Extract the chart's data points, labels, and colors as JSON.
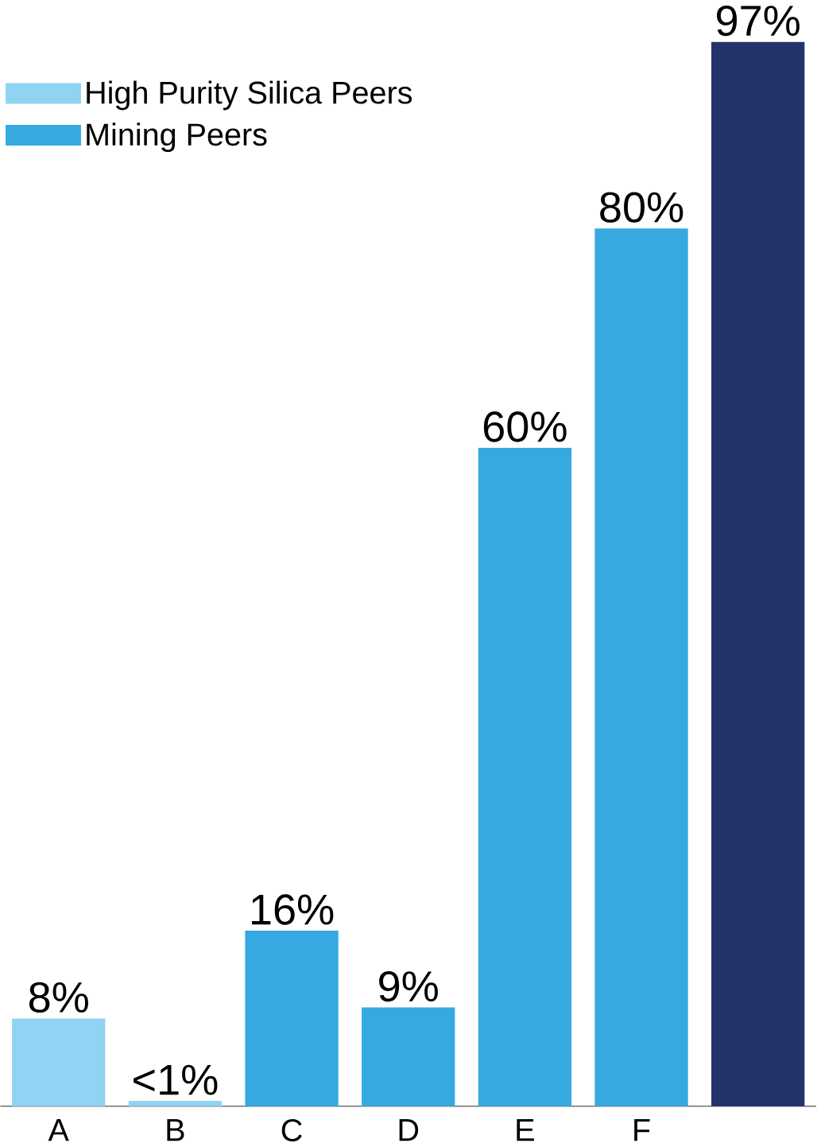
{
  "chart_data": {
    "type": "bar",
    "categories": [
      "A",
      "B",
      "C",
      "D",
      "E",
      "F",
      null
    ],
    "series": [
      {
        "name": "High Purity Silica Peers",
        "color": "#8fd4f2",
        "values": [
          8,
          0.5,
          null,
          null,
          null,
          null,
          null
        ],
        "value_labels": [
          "8%",
          "<1%",
          null,
          null,
          null,
          null,
          null
        ]
      },
      {
        "name": "Mining Peers",
        "color": "#36a9e0",
        "values": [
          null,
          null,
          16,
          9,
          60,
          80,
          null
        ],
        "value_labels": [
          null,
          null,
          "16%",
          "9%",
          "60%",
          "80%",
          null
        ]
      },
      {
        "color": "#22336a",
        "values": [
          null,
          null,
          null,
          null,
          null,
          null,
          97
        ],
        "value_labels": [
          null,
          null,
          null,
          null,
          null,
          null,
          "97%"
        ]
      }
    ],
    "ylim": [
      0,
      97
    ],
    "tick_labels": "x",
    "legend": "top left",
    "grid": false
  }
}
